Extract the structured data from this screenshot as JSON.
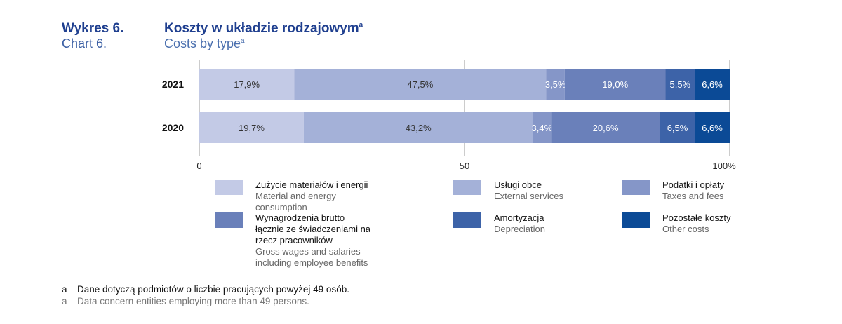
{
  "header": {
    "label_pl": "Wykres 6.",
    "label_en": "Chart 6.",
    "title_pl": "Koszty w układzie rodzajowym",
    "title_en": "Costs by type",
    "footnote_mark": "a"
  },
  "chart_data": {
    "type": "bar",
    "orientation": "horizontal",
    "stacked": true,
    "percent_stacked": true,
    "categories": [
      "2021",
      "2020"
    ],
    "series": [
      {
        "name": "Zużycie materiałów i energii",
        "name_en": "Material and energy consumption",
        "color": "#c3cae6",
        "values": [
          17.9,
          19.7
        ],
        "labels": [
          "17,9%",
          "19,7%"
        ]
      },
      {
        "name": "Usługi obce",
        "name_en": "External services",
        "color": "#a4b1d8",
        "values": [
          47.5,
          43.2
        ],
        "labels": [
          "47,5%",
          "43,2%"
        ]
      },
      {
        "name": "Podatki i opłaty",
        "name_en": "Taxes and fees",
        "color": "#8596c8",
        "values": [
          3.5,
          3.4
        ],
        "labels": [
          "3,5%",
          "3,4%"
        ]
      },
      {
        "name": "Wynagrodzenia brutto łącznie ze świadczeniami na rzecz pracowników",
        "name_en": "Gross wages and salaries including employee benefits",
        "color": "#6a80ba",
        "values": [
          19.0,
          20.6
        ],
        "labels": [
          "19,0%",
          "20,6%"
        ]
      },
      {
        "name": "Amortyzacja",
        "name_en": "Depreciation",
        "color": "#3d63a8",
        "values": [
          5.5,
          6.5
        ],
        "labels": [
          "5,5%",
          "6,5%"
        ]
      },
      {
        "name": "Pozostałe koszty",
        "name_en": "Other costs",
        "color": "#0b4a96",
        "values": [
          6.6,
          6.6
        ],
        "labels": [
          "6,6%",
          "6,6%"
        ]
      }
    ],
    "xlim": [
      0,
      100
    ],
    "x_ticks": [
      {
        "value": 0,
        "label": "0"
      },
      {
        "value": 50,
        "label": "50"
      },
      {
        "value": 100,
        "label": "100%"
      }
    ],
    "grid": "vertical",
    "legend_position": "bottom"
  },
  "legend": [
    {
      "pl": "Zużycie materiałów i energii",
      "en": "Material and energy consumption",
      "color": "#c3cae6"
    },
    {
      "pl": "Usługi obce",
      "en": "External services",
      "color": "#a4b1d8"
    },
    {
      "pl": "Podatki i opłaty",
      "en": "Taxes and fees",
      "color": "#8596c8"
    },
    {
      "pl": "Wynagrodzenia brutto łącznie ze świadczeniami na rzecz pracowników",
      "en": "Gross wages and salaries including employee benefits",
      "color": "#6a80ba"
    },
    {
      "pl": "Amortyzacja",
      "en": "Depreciation",
      "color": "#3d63a8"
    },
    {
      "pl": "Pozostałe koszty",
      "en": "Other costs",
      "color": "#0b4a96"
    }
  ],
  "footnotes": {
    "mark": "a",
    "pl": "Dane dotyczą podmiotów o liczbie pracujących powyżej 49 osób.",
    "en": "Data concern entities employing more than 49 persons."
  }
}
